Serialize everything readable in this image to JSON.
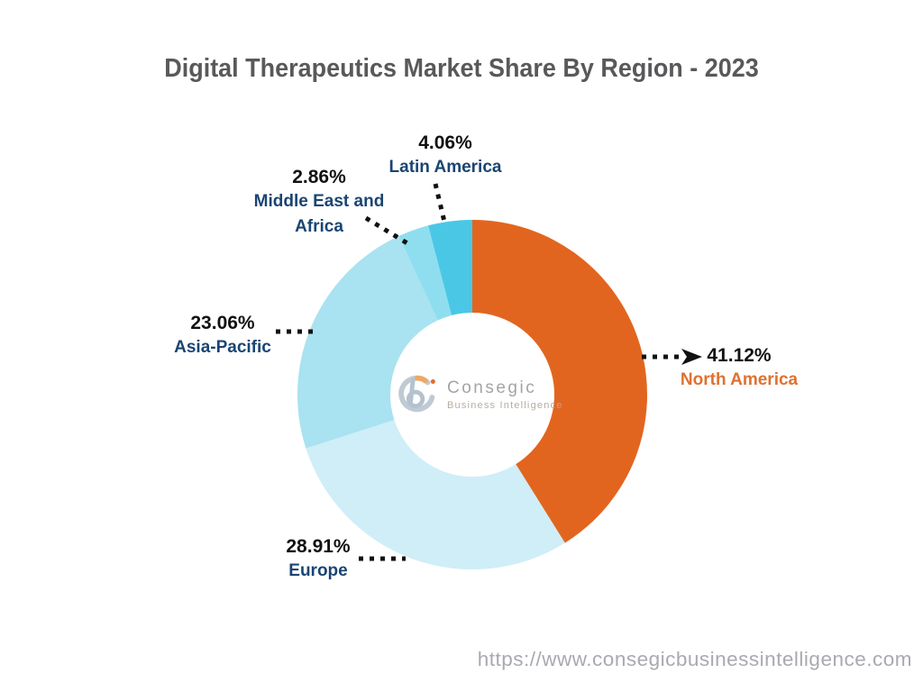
{
  "page": {
    "title": "Digital Therapeutics Market Share By Region - 2023",
    "footer_url": "https://www.consegicbusinessintelligence.com"
  },
  "watermark": {
    "brand": "Consegic",
    "subtitle": "Business Intelligence"
  },
  "chart_data": {
    "type": "pie",
    "subtype": "donut",
    "title": "Digital Therapeutics Market Share By Region - 2023",
    "start_angle_deg": 0,
    "direction": "clockwise",
    "inner_radius_ratio": 0.47,
    "legend_position": "none",
    "value_text_color": "#111111",
    "segments": [
      {
        "label": "North America",
        "value": 41.12,
        "pct_label": "41.12%",
        "color": "#E2651F",
        "label_color": "#E0712E"
      },
      {
        "label": "Europe",
        "value": 28.91,
        "pct_label": "28.91%",
        "color": "#CFEEF7",
        "label_color": "#1A4572"
      },
      {
        "label": "Asia-Pacific",
        "value": 23.06,
        "pct_label": "23.06%",
        "color": "#A9E2F0",
        "label_color": "#1A4572"
      },
      {
        "label": "Middle East and Africa",
        "value": 2.86,
        "pct_label": "2.86%",
        "color": "#8FDEEF",
        "label_color": "#1A4572"
      },
      {
        "label": "Latin America",
        "value": 4.06,
        "pct_label": "4.06%",
        "color": "#4BC7E6",
        "label_color": "#1A4572"
      }
    ]
  }
}
